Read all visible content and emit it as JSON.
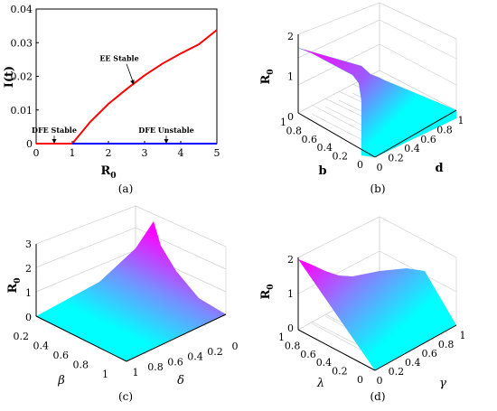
{
  "chart_data": [
    {
      "panel": "(a)",
      "type": "line",
      "xlabel": "R",
      "xlabel_sub": "0",
      "ylabel": "I(t)",
      "xlim": [
        0,
        5
      ],
      "ylim": [
        0,
        0.04
      ],
      "xticks": [
        "0",
        "1",
        "2",
        "3",
        "4",
        "5"
      ],
      "yticks": [
        "0",
        "0.01",
        "0.02",
        "0.03",
        "0.04"
      ],
      "series": [
        {
          "color": "#ff0000",
          "x": [
            0,
            1
          ],
          "y": [
            0,
            0
          ]
        },
        {
          "color": "#ff0000",
          "x": [
            1,
            1.5,
            2,
            2.5,
            3,
            3.5,
            4,
            4.5,
            5
          ],
          "y": [
            0,
            0.0065,
            0.0118,
            0.0162,
            0.0203,
            0.0238,
            0.0268,
            0.0295,
            0.0338
          ]
        },
        {
          "color": "#0000ff",
          "x": [
            1,
            5
          ],
          "y": [
            0,
            0
          ]
        }
      ],
      "annotations": [
        {
          "text": "DFE Stable",
          "x": 0.5,
          "y": 0.0032,
          "arrow_to": [
            0.5,
            0
          ]
        },
        {
          "text": "EE Stable",
          "x": 2.3,
          "y": 0.0245,
          "arrow_to": [
            2.7,
            0.0175
          ]
        },
        {
          "text": "DFE Unstable",
          "x": 3.6,
          "y": 0.0032,
          "arrow_to": [
            3.6,
            0
          ]
        }
      ]
    },
    {
      "panel": "(b)",
      "type": "surface",
      "xlabel": "d",
      "ylabel": "b",
      "zlabel": "R",
      "zlabel_sub": "0",
      "xticks": [
        "0",
        "0.2",
        "0.4",
        "0.6",
        "0.8",
        "1"
      ],
      "yticks": [
        "0",
        "0.2",
        "0.4",
        "0.6",
        "0.8",
        "1"
      ],
      "zticks": [
        "0",
        "1",
        "2"
      ],
      "colors": [
        "#00ffff",
        "#ff00ff"
      ]
    },
    {
      "panel": "(c)",
      "type": "surface",
      "xlabel": "β",
      "ylabel": "δ",
      "zlabel": "R",
      "zlabel_sub": "0",
      "xticks": [
        "0.2",
        "0.4",
        "0.6",
        "0.8",
        "1"
      ],
      "yticks": [
        "0",
        "0.2",
        "0.4",
        "0.6",
        "0.8",
        "1"
      ],
      "zticks": [
        "0",
        "1",
        "2",
        "3"
      ],
      "colors": [
        "#00ffff",
        "#ff00ff"
      ]
    },
    {
      "panel": "(d)",
      "type": "surface",
      "xlabel": "γ",
      "ylabel": "λ",
      "zlabel": "R",
      "zlabel_sub": "0",
      "xticks": [
        "0",
        "0.2",
        "0.4",
        "0.6",
        "0.8",
        "1"
      ],
      "yticks": [
        "0",
        "0.2",
        "0.4",
        "0.6",
        "0.8",
        "1"
      ],
      "zticks": [
        "0",
        "1",
        "2"
      ],
      "colors": [
        "#00ffff",
        "#ff00ff"
      ]
    }
  ]
}
